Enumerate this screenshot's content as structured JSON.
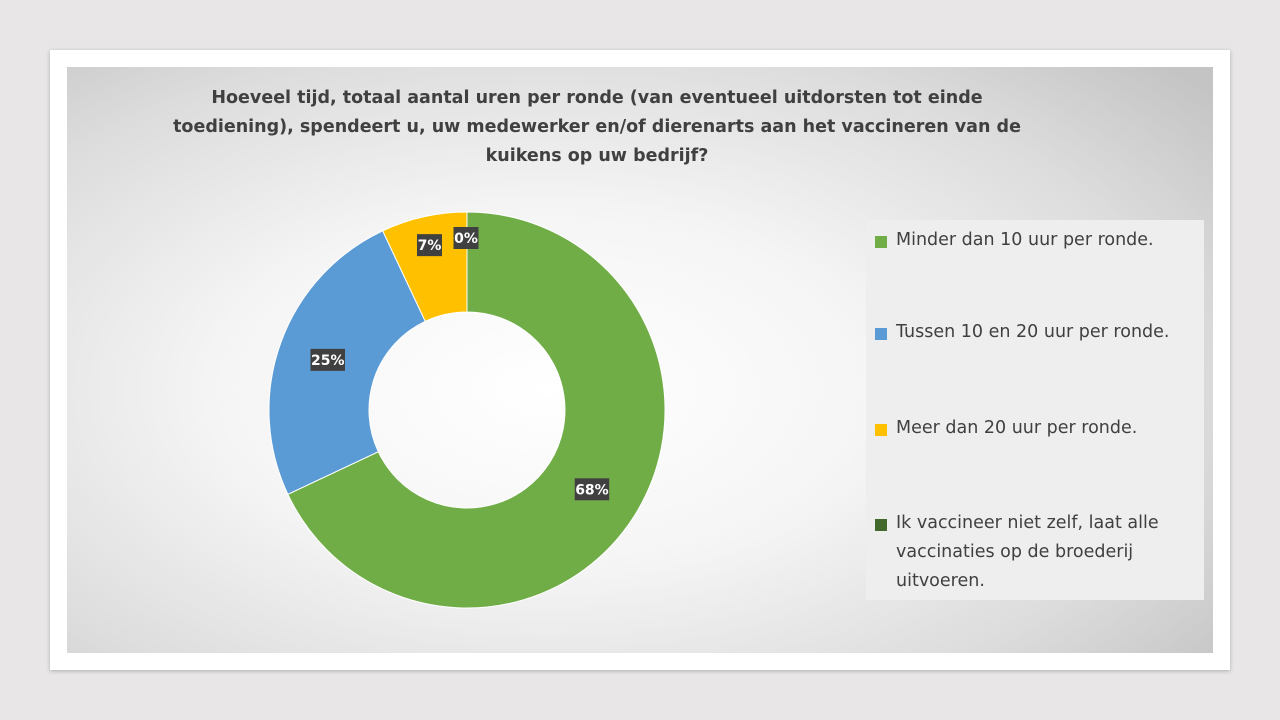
{
  "chart_data": {
    "type": "pie",
    "title": "Hoeveel tijd, totaal aantal uren per ronde (van eventueel uitdorsten tot einde toediening), spendeert u, uw medewerker en/of dierenarts aan het vaccineren van de kuikens op uw bedrijf?",
    "categories": [
      "Minder dan 10 uur per ronde.",
      "Tussen 10 en 20 uur per ronde.",
      "Meer dan 20 uur per ronde.",
      "Ik vaccineer niet zelf, laat alle vaccinaties op de broederij uitvoeren."
    ],
    "values": [
      68,
      25,
      7,
      0
    ],
    "data_labels": [
      "68%",
      "25%",
      "7%",
      "0%"
    ],
    "colors": [
      "#70ad47",
      "#5b9bd5",
      "#ffc000",
      "#43682b"
    ],
    "donut": true,
    "legend_position": "right"
  }
}
